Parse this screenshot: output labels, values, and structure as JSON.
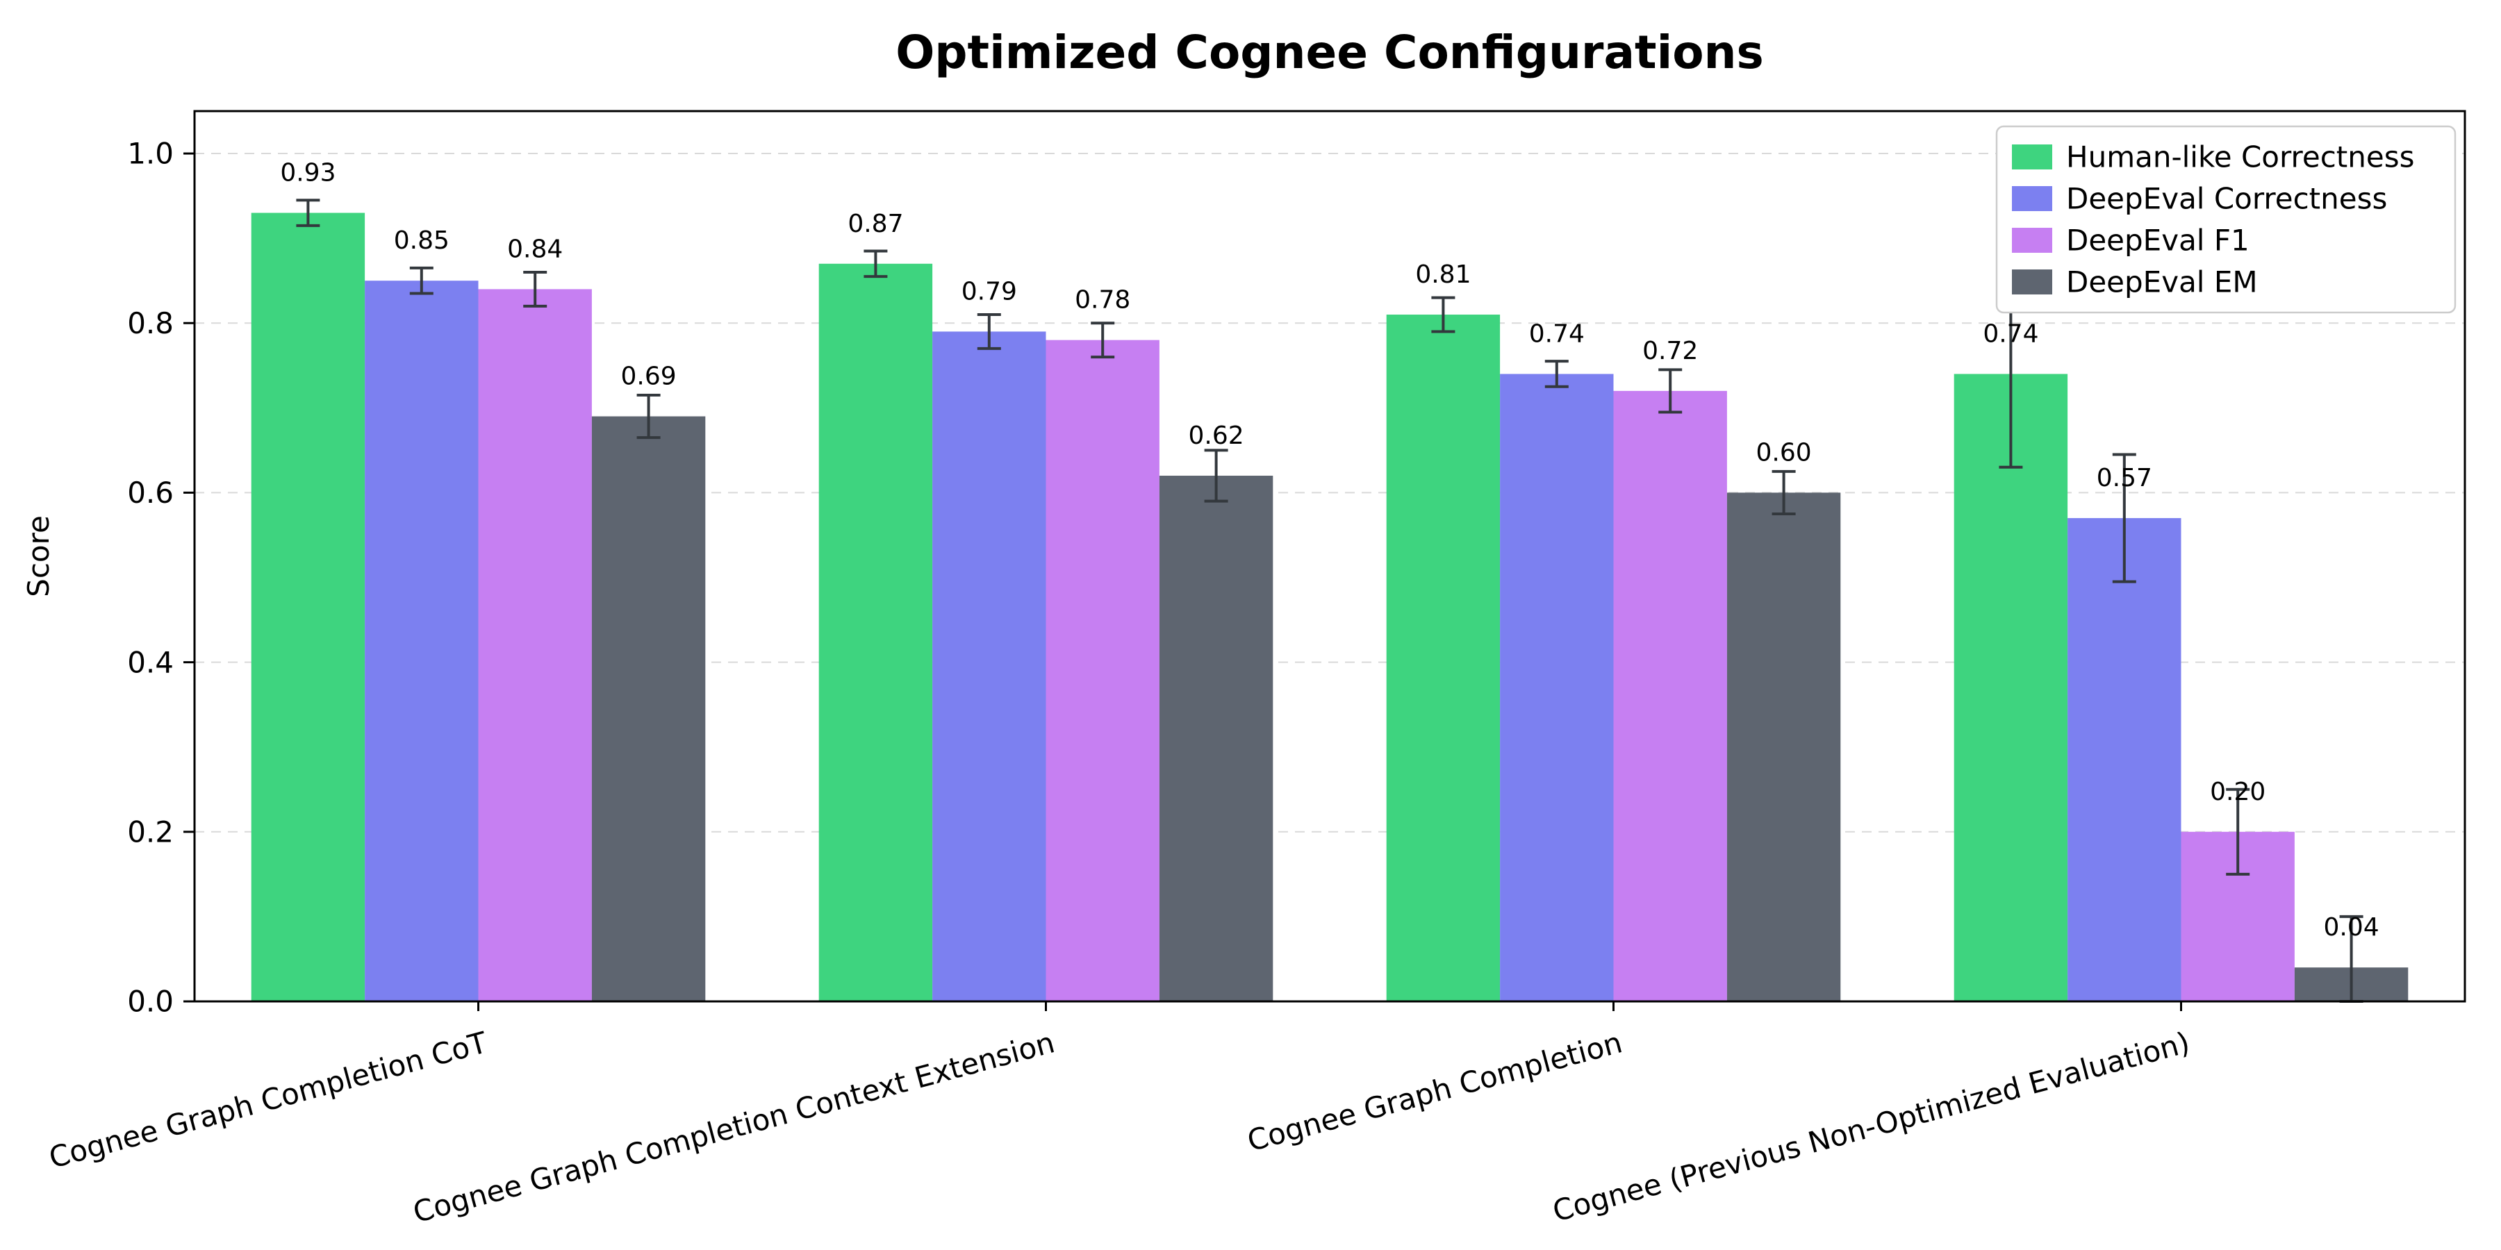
{
  "chart_data": {
    "type": "bar",
    "title": "Optimized Cognee Configurations",
    "ylabel": "Score",
    "xlabel": "",
    "ylim": [
      0,
      1.05
    ],
    "yticks": [
      0.0,
      0.2,
      0.4,
      0.6,
      0.8,
      1.0
    ],
    "grid": "horizontal dashed",
    "legend_position": "upper right",
    "bar_label_format": "0.00",
    "categories": [
      "Cognee Graph Completion CoT",
      "Cognee Graph Completion Context Extension",
      "Cognee Graph Completion",
      "Cognee (Previous Non-Optimized Evaluation)"
    ],
    "series": [
      {
        "name": "Human-like Correctness",
        "color": "#3ed47f",
        "values": [
          0.93,
          0.87,
          0.81,
          0.74
        ],
        "errors": [
          0.015,
          0.015,
          0.02,
          0.11
        ]
      },
      {
        "name": "DeepEval Correctness",
        "color": "#7c80f0",
        "values": [
          0.85,
          0.79,
          0.74,
          0.57
        ],
        "errors": [
          0.015,
          0.02,
          0.015,
          0.075
        ]
      },
      {
        "name": "DeepEval F1",
        "color": "#c67ff2",
        "values": [
          0.84,
          0.78,
          0.72,
          0.2
        ],
        "errors": [
          0.02,
          0.02,
          0.025,
          0.05
        ]
      },
      {
        "name": "DeepEval EM",
        "color": "#5e6570",
        "values": [
          0.69,
          0.62,
          0.6,
          0.04
        ],
        "errors": [
          0.025,
          0.03,
          0.025,
          0.06
        ]
      }
    ],
    "colors": {
      "grid": "#d9d9d9",
      "error_bar": "#33383d",
      "spine": "#000000",
      "legend_border": "#cccccc",
      "background": "#ffffff"
    }
  }
}
